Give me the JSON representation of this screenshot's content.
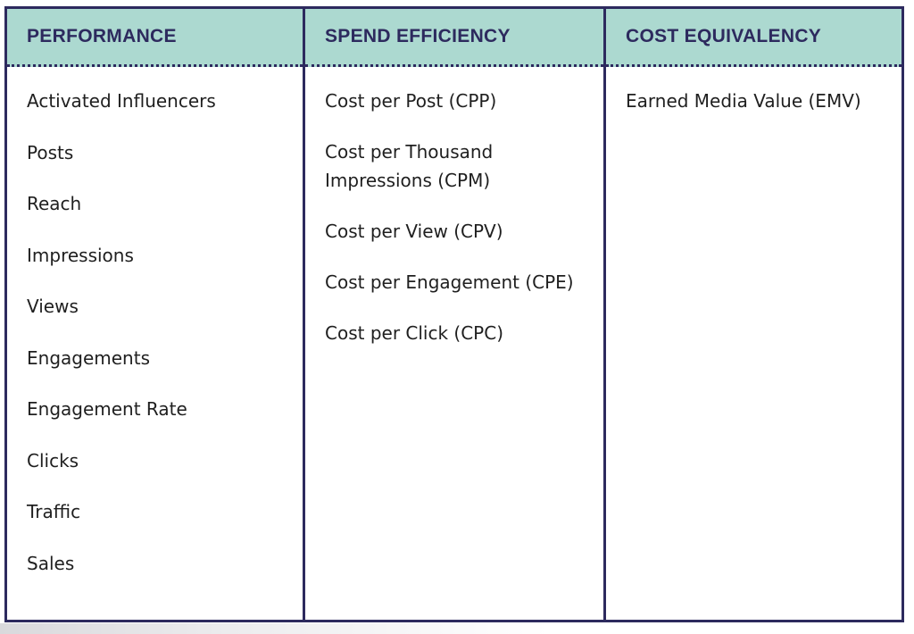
{
  "columns": [
    {
      "heading": "PERFORMANCE",
      "items": [
        "Activated Influencers",
        "Posts",
        "Reach",
        "Impressions",
        "Views",
        "Engagements",
        "Engagement Rate",
        "Clicks",
        "Traffic",
        "Sales"
      ]
    },
    {
      "heading": "SPEND EFFICIENCY",
      "items": [
        "Cost per Post (CPP)",
        "Cost per Thousand Impressions (CPM)",
        "Cost per View (CPV)",
        "Cost per Engagement (CPE)",
        "Cost per Click (CPC)"
      ]
    },
    {
      "heading": "COST EQUIVALENCY",
      "items": [
        "Earned Media Value (EMV)"
      ]
    }
  ],
  "colors": {
    "header_background": "#acd9d0",
    "border_and_heading": "#2d2a5e",
    "body_text": "#1f1f1f"
  }
}
